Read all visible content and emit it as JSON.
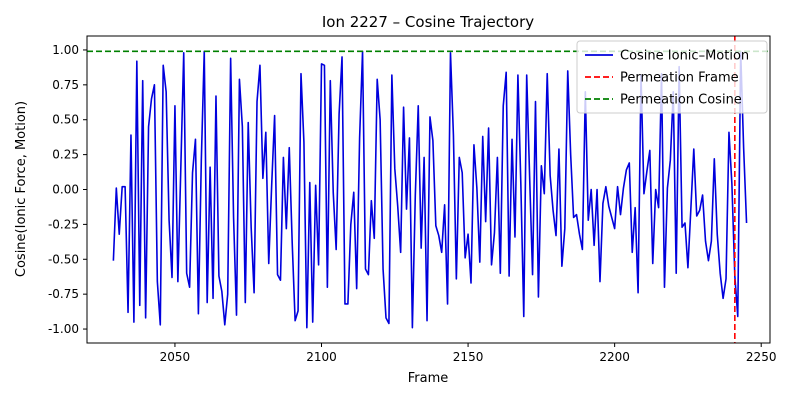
{
  "chart_data": {
    "type": "line",
    "title": "Ion 2227 – Cosine Trajectory",
    "xlabel": "Frame",
    "ylabel": "Cosine(Ionic Force, Motion)",
    "xlim": [
      2020,
      2253
    ],
    "ylim": [
      -1.1,
      1.1
    ],
    "xticks": [
      2050,
      2100,
      2150,
      2200,
      2250
    ],
    "yticks": [
      -1.0,
      -0.75,
      -0.5,
      -0.25,
      0.0,
      0.25,
      0.5,
      0.75,
      1.0
    ],
    "legend_position": "top-right",
    "grid": false,
    "series": [
      {
        "name": "Cosine Ionic–Motion",
        "color": "#0000dd",
        "style": "solid",
        "x_start": 2029,
        "x_step": 1,
        "values": [
          -0.51,
          0.01,
          -0.32,
          0.02,
          0.02,
          -0.88,
          0.39,
          -0.95,
          0.92,
          -0.83,
          0.78,
          -0.92,
          0.45,
          0.65,
          0.75,
          -0.66,
          -0.97,
          0.89,
          0.7,
          -0.22,
          -0.63,
          0.6,
          -0.66,
          0.15,
          0.98,
          -0.6,
          -0.7,
          0.12,
          0.36,
          -0.89,
          0.21,
          0.99,
          -0.81,
          0.16,
          -0.78,
          0.67,
          -0.62,
          -0.73,
          -0.97,
          -0.75,
          0.94,
          -0.2,
          -0.9,
          0.79,
          0.45,
          -0.81,
          0.48,
          -0.27,
          -0.74,
          0.63,
          0.89,
          0.08,
          0.41,
          -0.53,
          0.03,
          0.53,
          -0.61,
          -0.65,
          0.23,
          -0.28,
          0.3,
          -0.38,
          -0.94,
          -0.87,
          0.83,
          0.34,
          -0.99,
          0.05,
          -0.95,
          0.03,
          -0.54,
          0.9,
          0.89,
          -0.7,
          0.78,
          -0.02,
          -0.43,
          0.54,
          0.95,
          -0.82,
          -0.82,
          -0.25,
          -0.02,
          -0.71,
          0.37,
          0.99,
          -0.57,
          -0.61,
          -0.08,
          -0.35,
          0.79,
          0.5,
          -0.57,
          -0.92,
          -0.96,
          0.82,
          0.15,
          -0.12,
          -0.45,
          0.59,
          -0.14,
          0.37,
          -0.99,
          -0.04,
          0.6,
          -0.42,
          0.23,
          -0.94,
          0.52,
          0.35,
          -0.26,
          -0.33,
          -0.45,
          -0.11,
          -0.82,
          0.98,
          0.39,
          -0.64,
          0.23,
          0.12,
          -0.49,
          -0.32,
          -0.67,
          0.32,
          0.01,
          -0.52,
          0.38,
          -0.23,
          0.44,
          -0.54,
          -0.31,
          0.23,
          -0.6,
          0.6,
          0.84,
          -0.62,
          0.36,
          -0.34,
          0.82,
          0.04,
          -0.91,
          0.82,
          0.09,
          -0.61,
          0.63,
          -0.77,
          0.17,
          -0.03,
          0.83,
          0.1,
          -0.15,
          -0.33,
          0.29,
          -0.55,
          -0.28,
          0.85,
          0.25,
          -0.2,
          -0.18,
          -0.32,
          -0.43,
          0.7,
          -0.22,
          0.0,
          -0.4,
          0.0,
          -0.66,
          -0.1,
          0.02,
          -0.12,
          -0.2,
          -0.28,
          0.02,
          -0.18,
          0.01,
          0.14,
          0.19,
          -0.45,
          -0.13,
          -0.74,
          0.82,
          -0.03,
          0.13,
          0.28,
          -0.53,
          0.0,
          -0.13,
          0.83,
          -0.7,
          0.01,
          0.21,
          0.7,
          -0.6,
          0.88,
          -0.27,
          -0.24,
          -0.56,
          -0.14,
          0.29,
          -0.19,
          -0.15,
          -0.04,
          -0.37,
          -0.51,
          -0.37,
          0.22,
          -0.32,
          -0.6,
          -0.78,
          -0.64,
          0.41,
          0.04,
          -0.62,
          -0.91,
          0.99,
          0.3,
          -0.24
        ]
      },
      {
        "name": "Permeation Frame",
        "color": "#ff0000",
        "style": "dashed",
        "orientation": "vertical",
        "x": 2241
      },
      {
        "name": "Permeation Cosine",
        "color": "#008000",
        "style": "dashed",
        "orientation": "horizontal",
        "y": 0.99
      }
    ]
  }
}
